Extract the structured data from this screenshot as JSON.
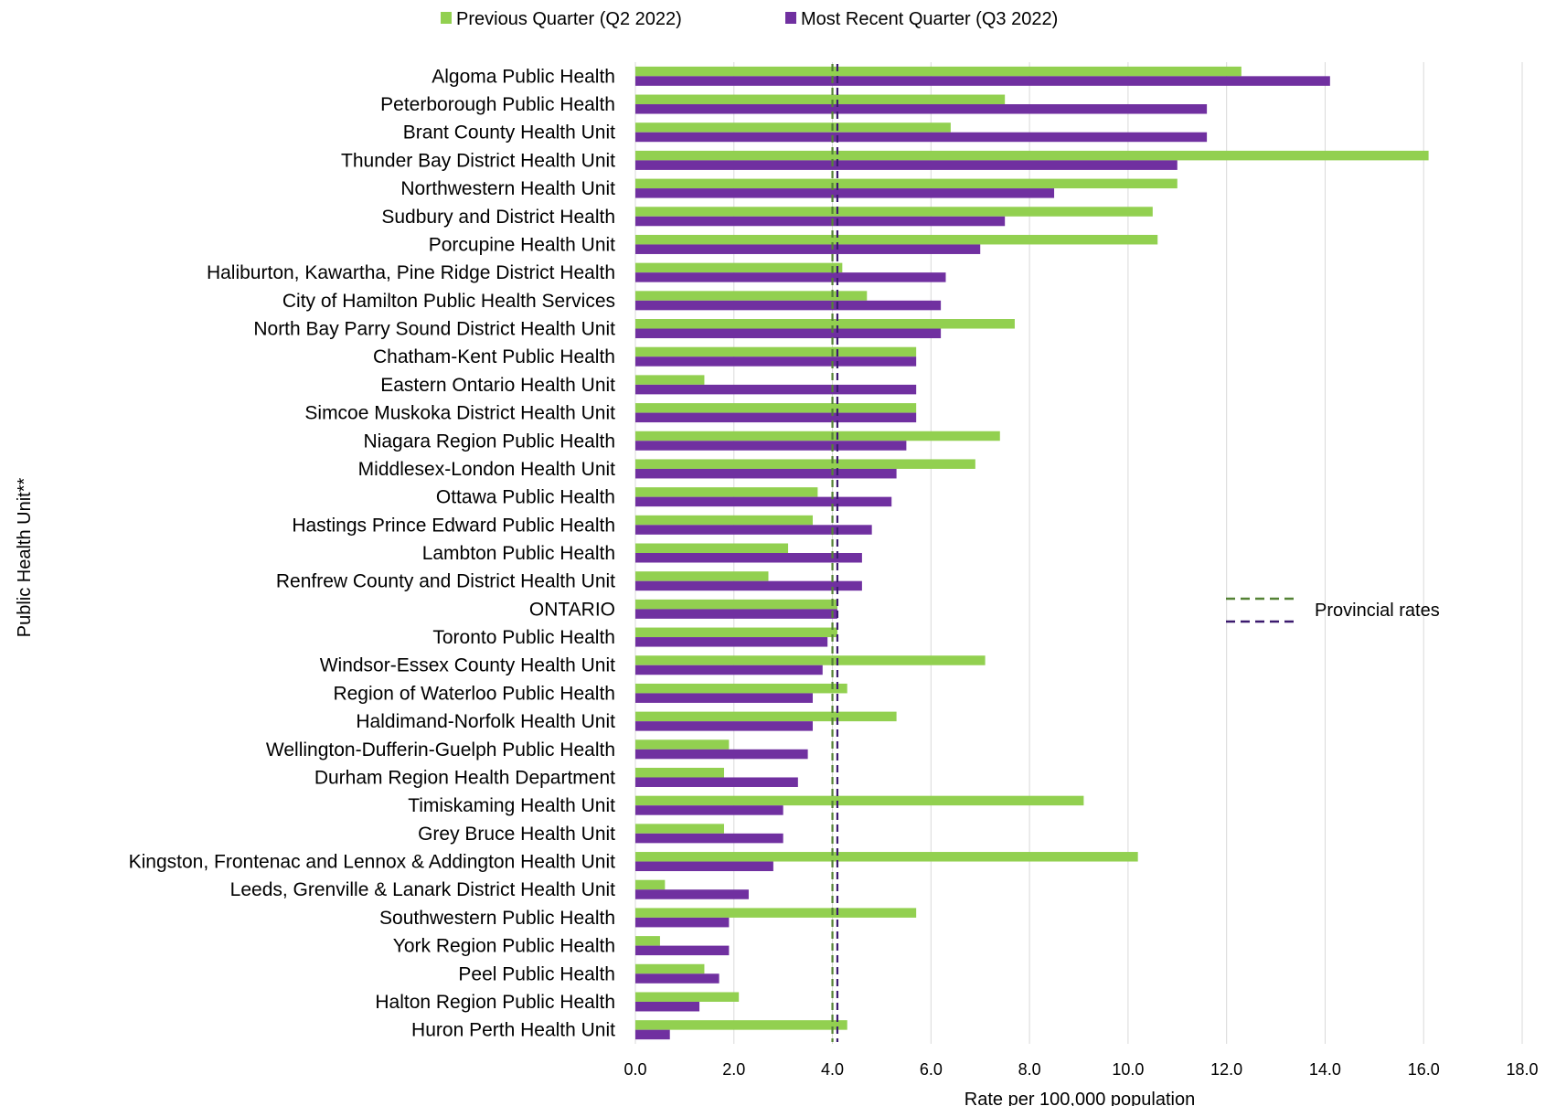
{
  "chart_data": {
    "type": "bar",
    "orientation": "horizontal",
    "xlabel": "Rate per 100,000 population",
    "ylabel": "Public Health Unit**",
    "xlim": [
      0,
      18
    ],
    "x_ticks": [
      "0.0",
      "2.0",
      "4.0",
      "6.0",
      "8.0",
      "10.0",
      "12.0",
      "14.0",
      "16.0",
      "18.0"
    ],
    "grid": "vertical",
    "legend_position": "top",
    "categories": [
      "Algoma Public Health",
      "Peterborough Public Health",
      "Brant County Health Unit",
      "Thunder Bay District Health Unit",
      "Northwestern Health Unit",
      "Sudbury and District Health",
      "Porcupine Health Unit",
      "Haliburton, Kawartha, Pine Ridge District Health",
      "City of Hamilton Public Health Services",
      "North Bay Parry Sound District Health Unit",
      "Chatham-Kent Public Health",
      "Eastern Ontario Health Unit",
      "Simcoe Muskoka District Health Unit",
      "Niagara Region Public Health",
      "Middlesex-London Health Unit",
      "Ottawa Public Health",
      "Hastings Prince Edward Public Health",
      "Lambton Public Health",
      "Renfrew County and District Health Unit",
      "ONTARIO",
      "Toronto Public Health",
      "Windsor-Essex County Health Unit",
      "Region of Waterloo Public Health",
      "Haldimand-Norfolk Health Unit",
      "Wellington-Dufferin-Guelph Public Health",
      "Durham Region Health Department",
      "Timiskaming Health Unit",
      "Grey Bruce Health Unit",
      "Kingston, Frontenac and Lennox & Addington Health Unit",
      "Leeds, Grenville & Lanark District Health Unit",
      "Southwestern Public Health",
      "York Region Public Health",
      "Peel Public Health",
      "Halton Region Public Health",
      "Huron Perth Health Unit"
    ],
    "series": [
      {
        "name": "Previous Quarter (Q2 2022)",
        "color": "#92d050",
        "values": [
          12.3,
          7.5,
          6.4,
          16.1,
          11.0,
          10.5,
          10.6,
          4.2,
          4.7,
          7.7,
          5.7,
          1.4,
          5.7,
          7.4,
          6.9,
          3.7,
          3.6,
          3.1,
          2.7,
          4.1,
          4.1,
          7.1,
          4.3,
          5.3,
          1.9,
          1.8,
          9.1,
          1.8,
          10.2,
          0.6,
          5.7,
          0.5,
          1.4,
          2.1,
          4.3
        ]
      },
      {
        "name": "Most Recent Quarter (Q3 2022)",
        "color": "#7030a0",
        "values": [
          14.1,
          11.6,
          11.6,
          11.0,
          8.5,
          7.5,
          7.0,
          6.3,
          6.2,
          6.2,
          5.7,
          5.7,
          5.7,
          5.5,
          5.3,
          5.2,
          4.8,
          4.6,
          4.6,
          4.1,
          3.9,
          3.8,
          3.6,
          3.6,
          3.5,
          3.3,
          3.0,
          3.0,
          2.8,
          2.3,
          1.9,
          1.9,
          1.7,
          1.3,
          0.7
        ]
      }
    ],
    "reference_lines": [
      {
        "value": 4.0,
        "color": "#548235",
        "style": "dashed"
      },
      {
        "value": 4.1,
        "color": "#3b1a6e",
        "style": "dashed"
      }
    ],
    "annotation": "Provincial rates"
  }
}
